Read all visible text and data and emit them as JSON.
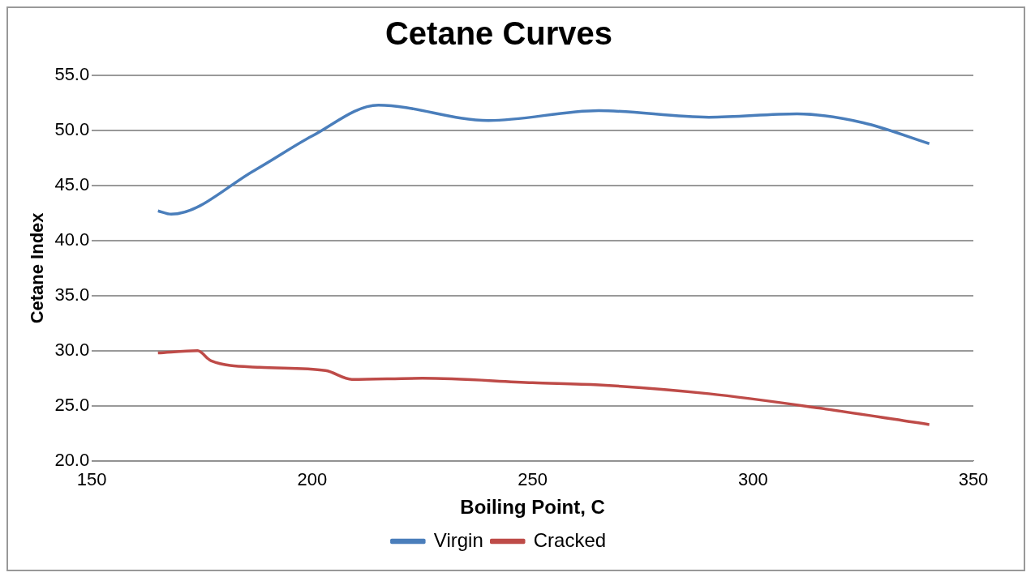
{
  "chart_data": {
    "type": "line",
    "title": "Cetane Curves",
    "xlabel": "Boiling Point, C",
    "ylabel": "Cetane Index",
    "xlim": [
      150,
      350
    ],
    "xticks": [
      150,
      200,
      250,
      300,
      350
    ],
    "ylim": [
      20,
      55
    ],
    "yticks": [
      {
        "value": 20,
        "label": "20.0"
      },
      {
        "value": 25,
        "label": "25.0"
      },
      {
        "value": 30,
        "label": "30.0"
      },
      {
        "value": 35,
        "label": "35.0"
      },
      {
        "value": 40,
        "label": "40.0"
      },
      {
        "value": 45,
        "label": "45.0"
      },
      {
        "value": 50,
        "label": "50.0"
      },
      {
        "value": 55,
        "label": "55.0"
      }
    ],
    "grid": "y",
    "legend": "bottom",
    "marker": "none",
    "series": [
      {
        "name": "Virgin",
        "color": "#4a7ebb",
        "x": [
          165,
          168,
          187,
          200,
          215,
          240,
          265,
          290,
          310,
          325,
          340
        ],
        "values": [
          42.7,
          42.4,
          46.4,
          49.5,
          52.3,
          50.9,
          51.8,
          51.2,
          51.5,
          50.7,
          48.8
        ]
      },
      {
        "name": "Cracked",
        "color": "#be4b48",
        "x": [
          165,
          174,
          177,
          188,
          203,
          209,
          225,
          250,
          265,
          290,
          315,
          340
        ],
        "values": [
          29.8,
          30.0,
          29.1,
          28.5,
          28.2,
          27.4,
          27.5,
          27.1,
          26.9,
          26.1,
          24.8,
          23.3
        ]
      }
    ]
  }
}
